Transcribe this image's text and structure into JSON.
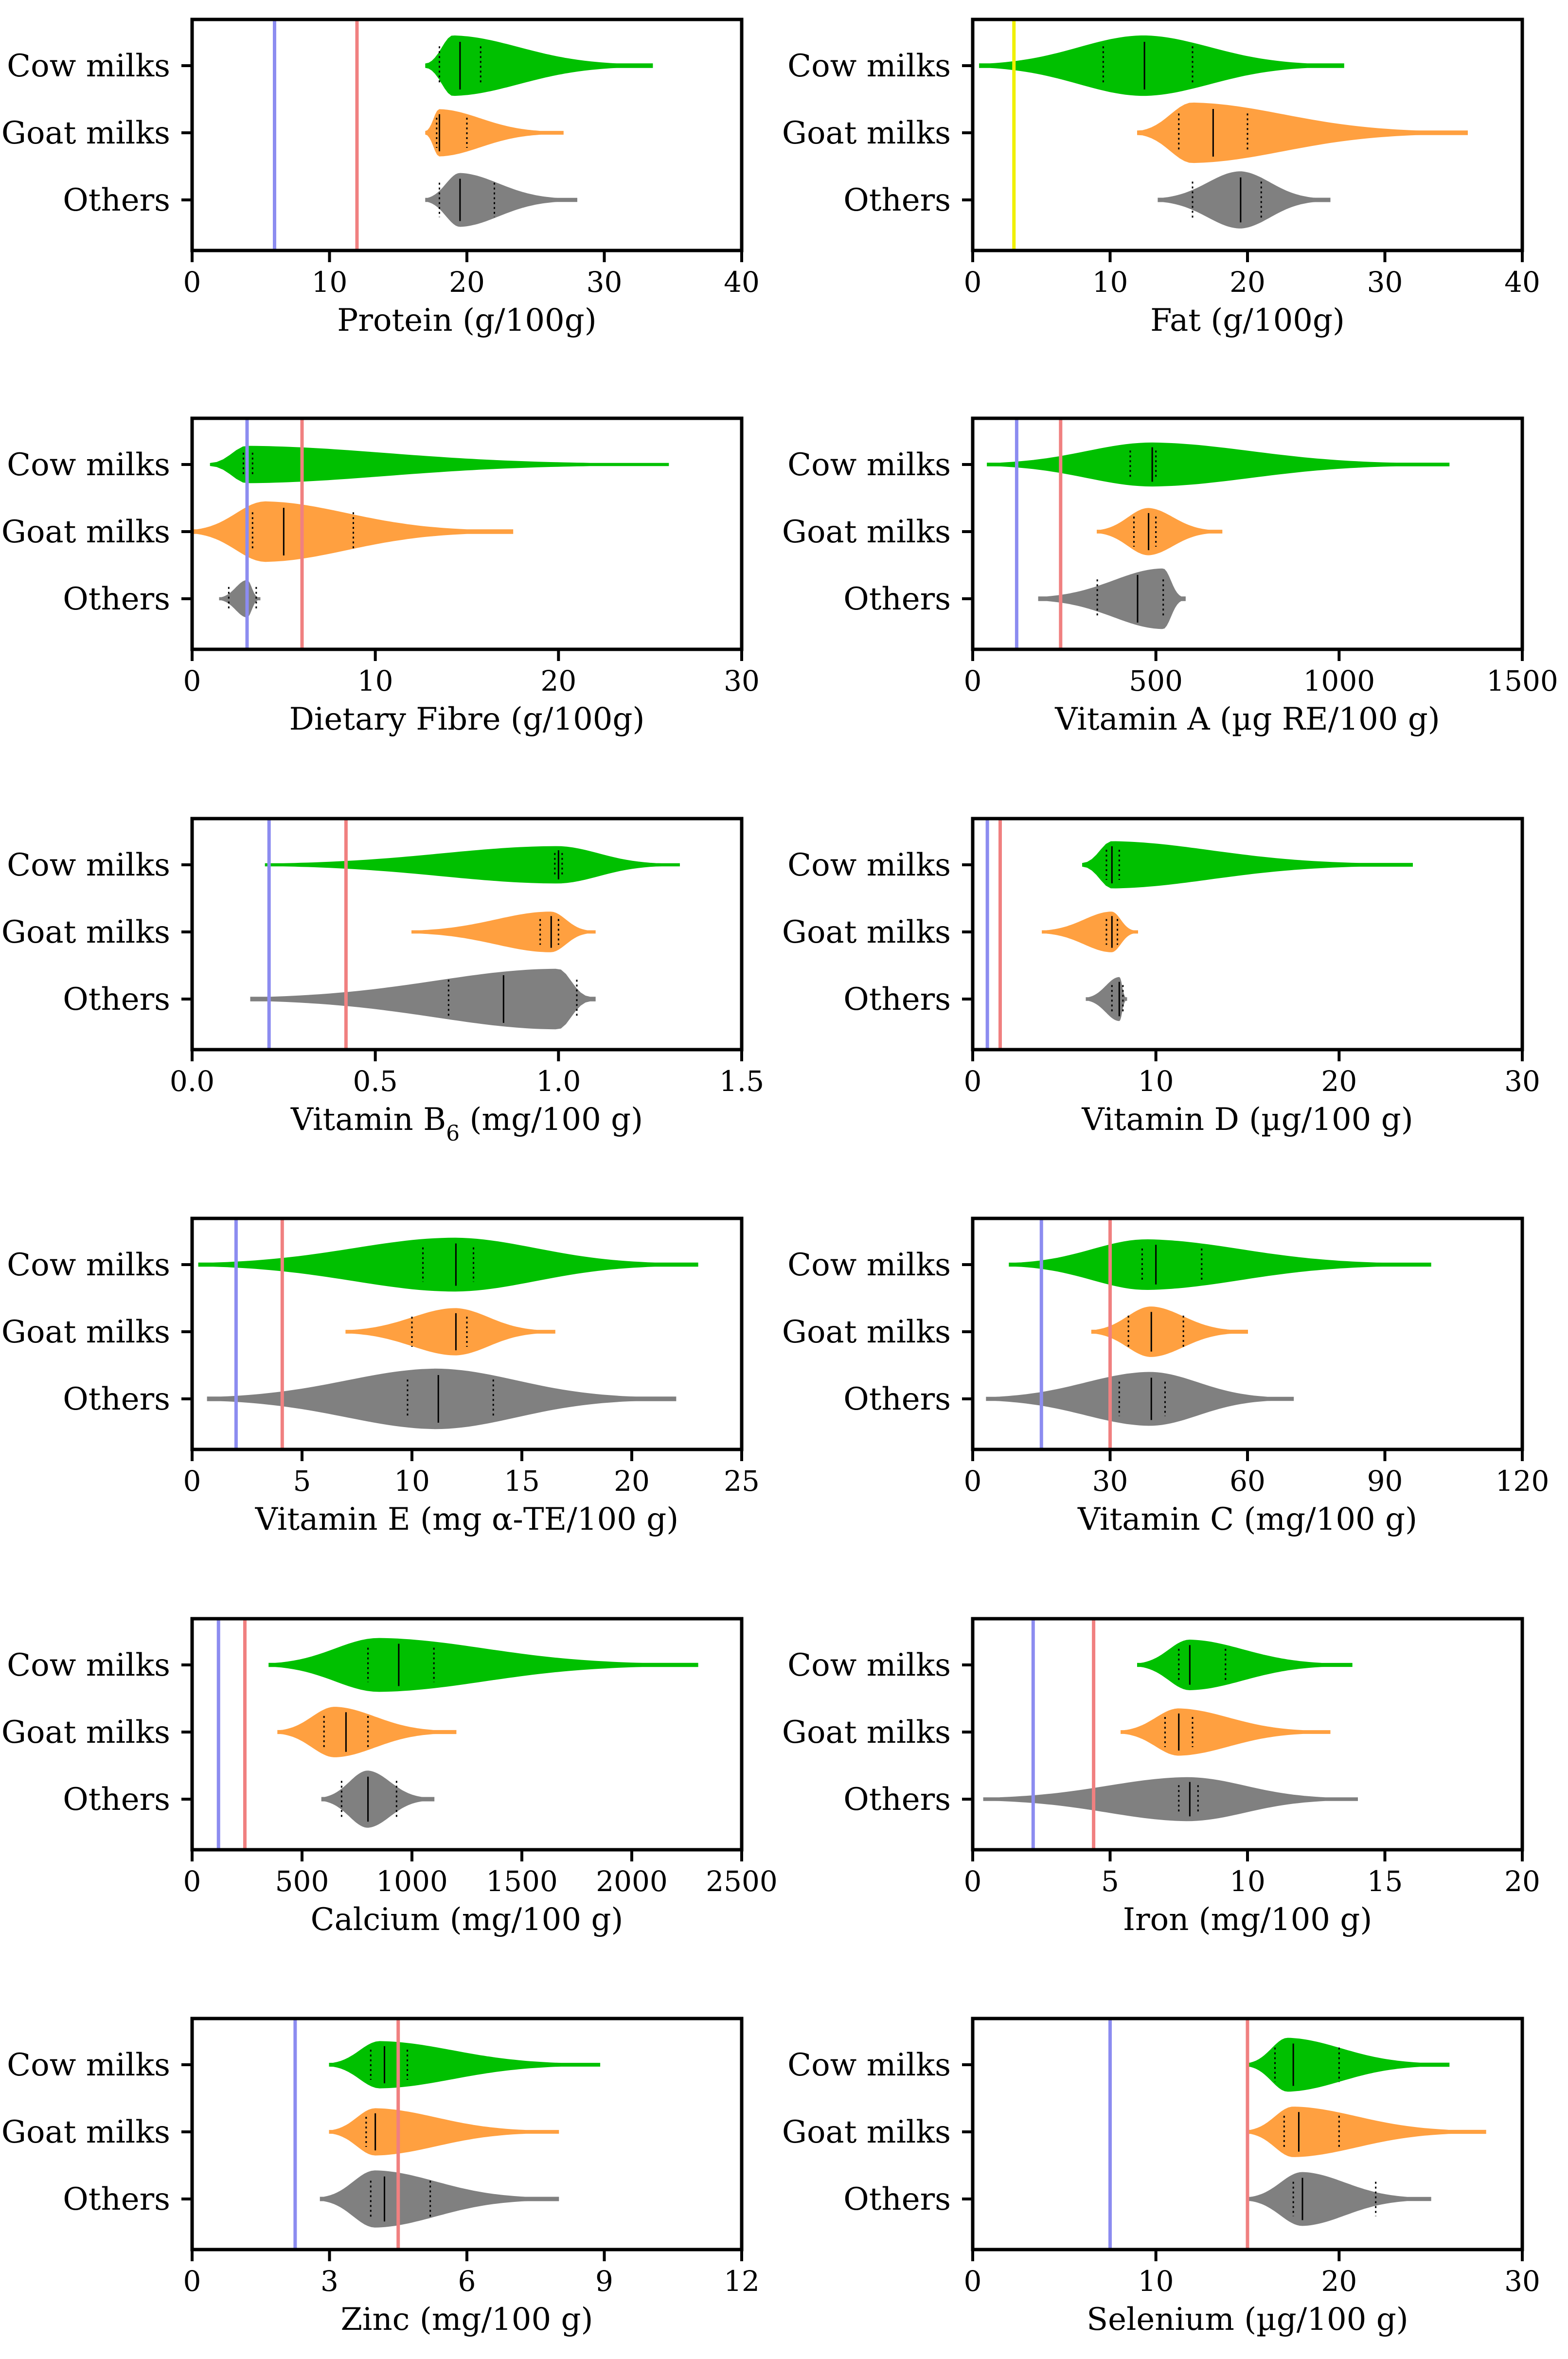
{
  "figure": {
    "categories": [
      "Cow milks",
      "Goat milks",
      "Others"
    ],
    "series_colors": {
      "Cow milks": "#00c000",
      "Goat milks": "#ffa040",
      "Others": "#808080"
    },
    "reference_colors": {
      "blue": "#8c8cf0",
      "red": "#f08080",
      "yellow": "#f0f000"
    }
  },
  "chart_data": [
    {
      "type": "violin",
      "xlabel": "Protein (g/100g)",
      "xlim": [
        0,
        40
      ],
      "ticks": [
        0,
        10,
        20,
        30,
        40
      ],
      "ticklabels": [
        "0",
        "10",
        "20",
        "30",
        "40"
      ],
      "ref_lines": [
        {
          "value": 6,
          "color": "blue"
        },
        {
          "value": 12,
          "color": "red"
        }
      ],
      "series": [
        {
          "name": "Cow milks",
          "min": 17,
          "q1": 18,
          "median": 19.5,
          "q3": 21,
          "max": 33.5,
          "peak": 19,
          "width": 0.9
        },
        {
          "name": "Goat milks",
          "min": 17,
          "q1": 17.8,
          "median": 18,
          "q3": 20,
          "max": 27,
          "peak": 18,
          "width": 0.7
        },
        {
          "name": "Others",
          "min": 17,
          "q1": 18,
          "median": 19.5,
          "q3": 22,
          "max": 28,
          "peak": 19.5,
          "width": 0.8
        }
      ]
    },
    {
      "type": "violin",
      "xlabel": "Fat (g/100g)",
      "xlim": [
        0,
        40
      ],
      "ticks": [
        0,
        10,
        20,
        30,
        40
      ],
      "ticklabels": [
        "0",
        "10",
        "20",
        "30",
        "40"
      ],
      "ref_lines": [
        {
          "value": 3,
          "color": "yellow"
        }
      ],
      "series": [
        {
          "name": "Cow milks",
          "min": 0.5,
          "q1": 9.5,
          "median": 12.5,
          "q3": 16,
          "max": 27,
          "peak": 12.5,
          "width": 0.9
        },
        {
          "name": "Goat milks",
          "min": 12,
          "q1": 15,
          "median": 17.5,
          "q3": 20,
          "max": 36,
          "peak": 16,
          "width": 0.9
        },
        {
          "name": "Others",
          "min": 13.5,
          "q1": 16,
          "median": 19.5,
          "q3": 21,
          "max": 26,
          "peak": 19.5,
          "width": 0.85
        }
      ]
    },
    {
      "type": "violin",
      "xlabel": "Dietary Fibre (g/100g)",
      "xlim": [
        0,
        30
      ],
      "ticks": [
        0,
        10,
        20,
        30
      ],
      "ticklabels": [
        "0",
        "10",
        "20",
        "30"
      ],
      "ref_lines": [
        {
          "value": 3,
          "color": "blue"
        },
        {
          "value": 6,
          "color": "red"
        }
      ],
      "series": [
        {
          "name": "Cow milks",
          "min": 1,
          "q1": 2.8,
          "median": 3,
          "q3": 3.3,
          "max": 26,
          "peak": 3,
          "width": 0.55
        },
        {
          "name": "Goat milks",
          "min": 0,
          "q1": 3.3,
          "median": 5,
          "q3": 8.8,
          "max": 17.5,
          "peak": 4,
          "width": 0.9
        },
        {
          "name": "Others",
          "min": 1.5,
          "q1": 2,
          "median": 3,
          "q3": 3.5,
          "max": 3.7,
          "peak": 3,
          "width": 0.55
        }
      ]
    },
    {
      "type": "violin",
      "xlabel": "Vitamin A (µg RE/100 g)",
      "xlim": [
        0,
        1500
      ],
      "ticks": [
        0,
        500,
        1000,
        1500
      ],
      "ticklabels": [
        "0",
        "500",
        "1000",
        "1500"
      ],
      "ref_lines": [
        {
          "value": 120,
          "color": "blue"
        },
        {
          "value": 240,
          "color": "red"
        }
      ],
      "series": [
        {
          "name": "Cow milks",
          "min": 40,
          "q1": 430,
          "median": 490,
          "q3": 500,
          "max": 1300,
          "peak": 490,
          "width": 0.65
        },
        {
          "name": "Goat milks",
          "min": 340,
          "q1": 440,
          "median": 480,
          "q3": 500,
          "max": 680,
          "peak": 480,
          "width": 0.7
        },
        {
          "name": "Others",
          "min": 180,
          "q1": 340,
          "median": 450,
          "q3": 520,
          "max": 580,
          "peak": 520,
          "width": 0.9
        }
      ]
    },
    {
      "type": "violin",
      "xlabel": "Vitamin B",
      "xlabel_sub": "6",
      "xlabel_unit": " (mg/100 g)",
      "xlim": [
        0,
        1.5
      ],
      "ticks": [
        0,
        0.5,
        1.0,
        1.5
      ],
      "ticklabels": [
        "0.0",
        "0.5",
        "1.0",
        "1.5"
      ],
      "ref_lines": [
        {
          "value": 0.21,
          "color": "blue"
        },
        {
          "value": 0.42,
          "color": "red"
        }
      ],
      "series": [
        {
          "name": "Cow milks",
          "min": 0.2,
          "q1": 0.99,
          "median": 1.0,
          "q3": 1.01,
          "max": 1.33,
          "peak": 1.0,
          "width": 0.55
        },
        {
          "name": "Goat milks",
          "min": 0.6,
          "q1": 0.95,
          "median": 0.98,
          "q3": 1.0,
          "max": 1.1,
          "peak": 0.98,
          "width": 0.6
        },
        {
          "name": "Others",
          "min": 0.16,
          "q1": 0.7,
          "median": 0.85,
          "q3": 1.05,
          "max": 1.1,
          "peak": 1.0,
          "width": 0.9
        }
      ]
    },
    {
      "type": "violin",
      "xlabel": "Vitamin D (µg/100 g)",
      "xlim": [
        0,
        30
      ],
      "ticks": [
        0,
        10,
        20,
        30
      ],
      "ticklabels": [
        "0",
        "10",
        "20",
        "30"
      ],
      "ref_lines": [
        {
          "value": 0.8,
          "color": "blue"
        },
        {
          "value": 1.5,
          "color": "red"
        }
      ],
      "series": [
        {
          "name": "Cow milks",
          "min": 6,
          "q1": 7.3,
          "median": 7.6,
          "q3": 8,
          "max": 24,
          "peak": 7.6,
          "width": 0.7
        },
        {
          "name": "Goat milks",
          "min": 3.8,
          "q1": 7.3,
          "median": 7.6,
          "q3": 7.9,
          "max": 9,
          "peak": 7.6,
          "width": 0.6
        },
        {
          "name": "Others",
          "min": 6.2,
          "q1": 7.6,
          "median": 8,
          "q3": 8.2,
          "max": 8.4,
          "peak": 8,
          "width": 0.65
        }
      ]
    },
    {
      "type": "violin",
      "xlabel": "Vitamin E (mg α-TE/100 g)",
      "xlim": [
        0,
        25
      ],
      "ticks": [
        0,
        5,
        10,
        15,
        20,
        25
      ],
      "ticklabels": [
        "0",
        "5",
        "10",
        "15",
        "20",
        "25"
      ],
      "ref_lines": [
        {
          "value": 2,
          "color": "blue"
        },
        {
          "value": 4.1,
          "color": "red"
        }
      ],
      "series": [
        {
          "name": "Cow milks",
          "min": 0.3,
          "q1": 10.5,
          "median": 12,
          "q3": 12.8,
          "max": 23,
          "peak": 12,
          "width": 0.8
        },
        {
          "name": "Goat milks",
          "min": 7,
          "q1": 10,
          "median": 12,
          "q3": 12.5,
          "max": 16.5,
          "peak": 12,
          "width": 0.7
        },
        {
          "name": "Others",
          "min": 0.7,
          "q1": 9.8,
          "median": 11.2,
          "q3": 13.7,
          "max": 22,
          "peak": 11.2,
          "width": 0.9
        }
      ]
    },
    {
      "type": "violin",
      "xlabel": "Vitamin C (mg/100 g)",
      "xlim": [
        0,
        120
      ],
      "ticks": [
        0,
        30,
        60,
        90,
        120
      ],
      "ticklabels": [
        "0",
        "30",
        "60",
        "90",
        "120"
      ],
      "ref_lines": [
        {
          "value": 15,
          "color": "blue"
        },
        {
          "value": 30,
          "color": "red"
        }
      ],
      "series": [
        {
          "name": "Cow milks",
          "min": 8,
          "q1": 37,
          "median": 40,
          "q3": 50,
          "max": 100,
          "peak": 38,
          "width": 0.75
        },
        {
          "name": "Goat milks",
          "min": 26,
          "q1": 34,
          "median": 39,
          "q3": 46,
          "max": 60,
          "peak": 39,
          "width": 0.75
        },
        {
          "name": "Others",
          "min": 3,
          "q1": 32,
          "median": 39,
          "q3": 42,
          "max": 70,
          "peak": 39,
          "width": 0.8
        }
      ]
    },
    {
      "type": "violin",
      "xlabel": "Calcium (mg/100 g)",
      "xlim": [
        0,
        2500
      ],
      "ticks": [
        0,
        500,
        1000,
        1500,
        2000,
        2500
      ],
      "ticklabels": [
        "0",
        "500",
        "1000",
        "1500",
        "2000",
        "2500"
      ],
      "ref_lines": [
        {
          "value": 120,
          "color": "blue"
        },
        {
          "value": 240,
          "color": "red"
        }
      ],
      "series": [
        {
          "name": "Cow milks",
          "min": 350,
          "q1": 800,
          "median": 940,
          "q3": 1100,
          "max": 2300,
          "peak": 850,
          "width": 0.8
        },
        {
          "name": "Goat milks",
          "min": 390,
          "q1": 600,
          "median": 700,
          "q3": 800,
          "max": 1200,
          "peak": 650,
          "width": 0.75
        },
        {
          "name": "Others",
          "min": 590,
          "q1": 680,
          "median": 800,
          "q3": 930,
          "max": 1100,
          "peak": 800,
          "width": 0.85
        }
      ]
    },
    {
      "type": "violin",
      "xlabel": "Iron (mg/100 g)",
      "xlim": [
        0,
        20
      ],
      "ticks": [
        0,
        5,
        10,
        15,
        20
      ],
      "ticklabels": [
        "0",
        "5",
        "10",
        "15",
        "20"
      ],
      "ref_lines": [
        {
          "value": 2.2,
          "color": "blue"
        },
        {
          "value": 4.4,
          "color": "red"
        }
      ],
      "series": [
        {
          "name": "Cow milks",
          "min": 6,
          "q1": 7.5,
          "median": 7.9,
          "q3": 9.2,
          "max": 13.8,
          "peak": 7.9,
          "width": 0.75
        },
        {
          "name": "Goat milks",
          "min": 5.4,
          "q1": 7,
          "median": 7.5,
          "q3": 8,
          "max": 13,
          "peak": 7.5,
          "width": 0.7
        },
        {
          "name": "Others",
          "min": 0.4,
          "q1": 7.5,
          "median": 7.9,
          "q3": 8.2,
          "max": 14,
          "peak": 7.9,
          "width": 0.65
        }
      ]
    },
    {
      "type": "violin",
      "xlabel": "Zinc (mg/100 g)",
      "xlim": [
        0,
        12
      ],
      "ticks": [
        0,
        3,
        6,
        9,
        12
      ],
      "ticklabels": [
        "0",
        "3",
        "6",
        "9",
        "12"
      ],
      "ref_lines": [
        {
          "value": 2.25,
          "color": "blue"
        },
        {
          "value": 4.5,
          "color": "red"
        }
      ],
      "series": [
        {
          "name": "Cow milks",
          "min": 3,
          "q1": 3.9,
          "median": 4.2,
          "q3": 4.7,
          "max": 8.9,
          "peak": 4.1,
          "width": 0.7
        },
        {
          "name": "Goat milks",
          "min": 3,
          "q1": 3.8,
          "median": 4,
          "q3": 4.5,
          "max": 8,
          "peak": 4,
          "width": 0.7
        },
        {
          "name": "Others",
          "min": 2.8,
          "q1": 3.9,
          "median": 4.2,
          "q3": 5.2,
          "max": 8,
          "peak": 4,
          "width": 0.85
        }
      ]
    },
    {
      "type": "violin",
      "xlabel": "Selenium (µg/100 g)",
      "xlim": [
        0,
        30
      ],
      "ticks": [
        0,
        10,
        20,
        30
      ],
      "ticklabels": [
        "0",
        "10",
        "20",
        "30"
      ],
      "ref_lines": [
        {
          "value": 7.5,
          "color": "blue"
        },
        {
          "value": 15,
          "color": "red"
        }
      ],
      "series": [
        {
          "name": "Cow milks",
          "min": 15,
          "q1": 16.5,
          "median": 17.5,
          "q3": 20,
          "max": 26,
          "peak": 17.2,
          "width": 0.8
        },
        {
          "name": "Goat milks",
          "min": 15,
          "q1": 17,
          "median": 17.8,
          "q3": 20,
          "max": 28,
          "peak": 17.5,
          "width": 0.75
        },
        {
          "name": "Others",
          "min": 15,
          "q1": 17.5,
          "median": 18,
          "q3": 22,
          "max": 25,
          "peak": 18,
          "width": 0.8
        }
      ]
    }
  ]
}
